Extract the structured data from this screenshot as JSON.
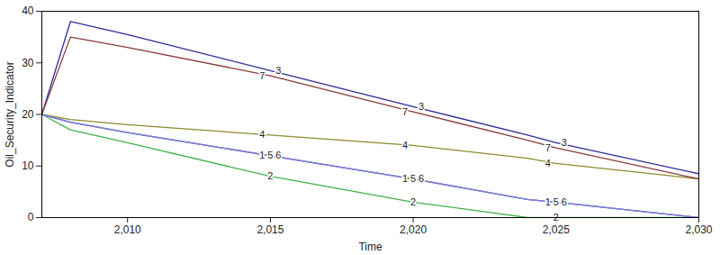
{
  "chart_data": {
    "type": "line",
    "x_label": "Time",
    "y_label": "Oil_Security_Indicator",
    "x": [
      2007,
      2008,
      2010,
      2015,
      2020,
      2024,
      2025,
      2030
    ],
    "series": [
      {
        "name": "1",
        "color": "#4a5fd6",
        "values": [
          20,
          18.5,
          16.5,
          12,
          7.5,
          3.5,
          3,
          0
        ]
      },
      {
        "name": "2",
        "color": "#3fb24a",
        "values": [
          20,
          17,
          14.5,
          8,
          3,
          0,
          0,
          0
        ]
      },
      {
        "name": "3",
        "color": "#2a2c9c",
        "values": [
          20,
          38,
          35.5,
          28.5,
          21.5,
          16,
          14.5,
          8.5
        ]
      },
      {
        "name": "4",
        "color": "#8e8a2e",
        "values": [
          20,
          19,
          18,
          16,
          14,
          11.5,
          10.5,
          7.5
        ]
      },
      {
        "name": "5",
        "color": "#5cc4df",
        "values": [
          20,
          18.5,
          16.5,
          12,
          7.5,
          3.5,
          3,
          0
        ]
      },
      {
        "name": "6",
        "color": "#8a6fd0",
        "values": [
          20,
          18.5,
          16.5,
          12,
          7.5,
          3.5,
          3,
          0
        ]
      },
      {
        "name": "7",
        "color": "#8b3a3a",
        "values": [
          20,
          35,
          33,
          27.5,
          20.5,
          15,
          13.5,
          7.5
        ]
      }
    ],
    "xlim": [
      2007,
      2030
    ],
    "xticks": [
      {
        "value": 2010,
        "label": "2,010"
      },
      {
        "value": 2015,
        "label": "2,015"
      },
      {
        "value": 2020,
        "label": "2,020"
      },
      {
        "value": 2025,
        "label": "2,025"
      },
      {
        "value": 2030,
        "label": "2,030"
      }
    ],
    "ylim": [
      0,
      40
    ],
    "yticks": [
      0,
      10,
      20,
      30,
      40
    ],
    "grid": false
  }
}
